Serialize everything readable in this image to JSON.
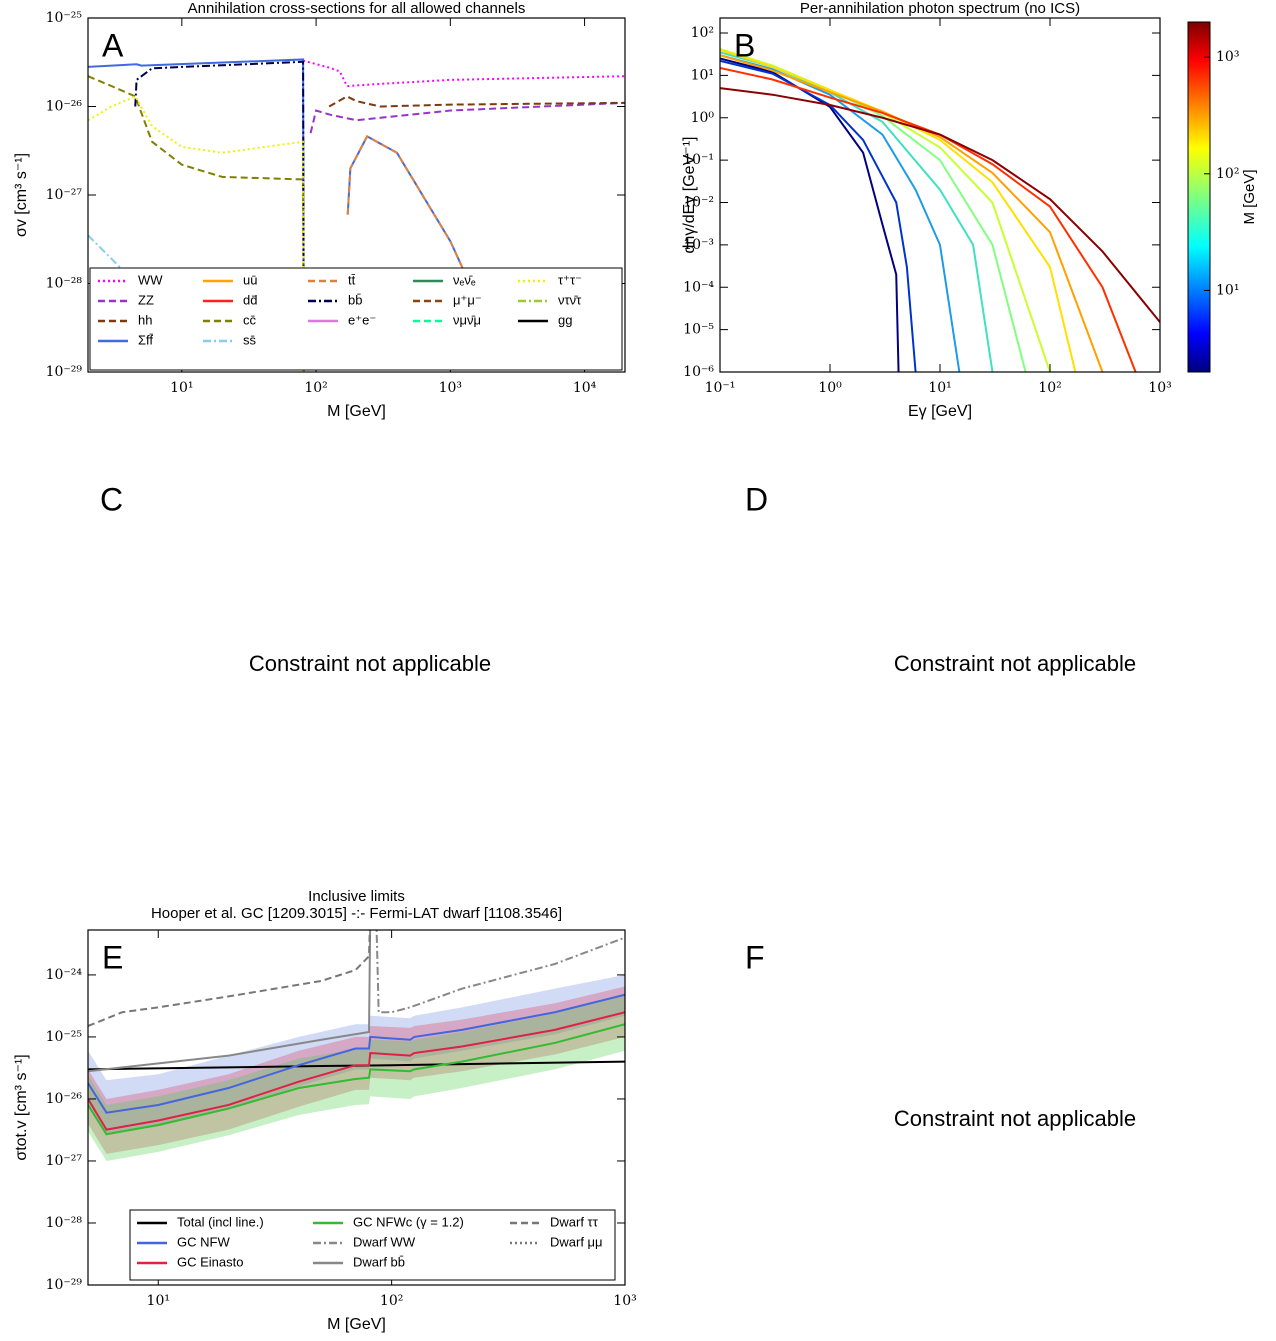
{
  "chart_data": [
    {
      "panel_label": "A",
      "type": "line",
      "title": "Annihilation cross-sections for all allowed channels",
      "xlabel": "M [GeV]",
      "ylabel": "σv [cm³ s⁻¹]",
      "xscale": "log",
      "yscale": "log",
      "xlim": [
        2,
        20000
      ],
      "ylim": [
        1e-29,
        1e-25
      ],
      "xticks": [
        {
          "value": 10,
          "label": "10¹"
        },
        {
          "value": 100,
          "label": "10²"
        },
        {
          "value": 1000,
          "label": "10³"
        },
        {
          "value": 10000,
          "label": "10⁴"
        }
      ],
      "yticks": [
        {
          "value": 1e-29,
          "label": "10⁻²⁹"
        },
        {
          "value": 1e-28,
          "label": "10⁻²⁸"
        },
        {
          "value": 1e-27,
          "label": "10⁻²⁷"
        },
        {
          "value": 1e-26,
          "label": "10⁻²⁶"
        },
        {
          "value": 1e-25,
          "label": "10⁻²⁵"
        }
      ],
      "legend_layout": [
        4,
        4,
        3,
        3,
        3
      ],
      "series": [
        {
          "name": "WW",
          "color": "#ff00ff",
          "style": "dotted",
          "x": [
            80,
            120,
            150,
            170,
            300,
            1000,
            20000
          ],
          "values": [
            3.3e-26,
            2.8e-26,
            2.5e-26,
            1.7e-26,
            1.8e-26,
            2e-26,
            2.2e-26
          ]
        },
        {
          "name": "ZZ",
          "color": "#9933cc",
          "style": "dashed",
          "x": [
            91,
            100,
            130,
            200,
            1000,
            20000
          ],
          "values": [
            5e-27,
            9e-27,
            8e-27,
            7e-27,
            9e-27,
            1.1e-26
          ]
        },
        {
          "name": "hh",
          "color": "#7a3b10",
          "style": "dashed",
          "x": [
            125,
            170,
            200,
            300,
            1000,
            20000
          ],
          "values": [
            1e-26,
            1.3e-26,
            1.15e-26,
            1e-26,
            1.05e-26,
            1.1e-26
          ]
        },
        {
          "name": "Σff̄",
          "color": "#4169e1",
          "style": "solid",
          "x": [
            2,
            4.6,
            5,
            80,
            81,
            120,
            172,
            180,
            240,
            400,
            1000,
            2000
          ],
          "values": [
            2.8e-26,
            3e-26,
            2.9e-26,
            3.4e-26,
            1e-29,
            null,
            6e-28,
            2e-27,
            4.6e-27,
            3e-27,
            3e-28,
            3e-29
          ]
        },
        {
          "name": "uū",
          "color": "#ffa500",
          "style": "solid",
          "x": [],
          "values": []
        },
        {
          "name": "dd̄",
          "color": "#ff2020",
          "style": "solid",
          "x": [],
          "values": []
        },
        {
          "name": "cc̄",
          "color": "#808000",
          "style": "dashed",
          "x": [
            2,
            3,
            4.5,
            6,
            10,
            20,
            80,
            81
          ],
          "values": [
            2.2e-26,
            1.7e-26,
            1.3e-26,
            4e-27,
            2.2e-27,
            1.6e-27,
            1.5e-27,
            1e-29
          ]
        },
        {
          "name": "ss̄",
          "color": "#87ceeb",
          "style": "dashdot",
          "x": [
            2,
            2.5,
            3.5
          ],
          "values": [
            3.5e-28,
            2.5e-28,
            1.5e-28
          ]
        },
        {
          "name": "tt̄",
          "color": "#e08040",
          "style": "dashed",
          "x": [
            172,
            180,
            240,
            400,
            1000,
            2000
          ],
          "values": [
            6e-28,
            2e-27,
            4.6e-27,
            3e-27,
            3e-28,
            3e-29
          ]
        },
        {
          "name": "bb̄",
          "color": "#000050",
          "style": "dashdot",
          "x": [
            4.5,
            4.6,
            6,
            10,
            30,
            80,
            81
          ],
          "values": [
            1e-26,
            2e-26,
            2.7e-26,
            2.8e-26,
            3e-26,
            3.2e-26,
            1e-29
          ]
        },
        {
          "name": "e⁺e⁻",
          "color": "#dd77dd",
          "style": "solid",
          "x": [],
          "values": []
        },
        {
          "name": "νₑν̄ₑ",
          "color": "#2e8b57",
          "style": "solid",
          "x": [],
          "values": []
        },
        {
          "name": "μ⁺μ⁻",
          "color": "#8b4513",
          "style": "dashed",
          "x": [],
          "values": []
        },
        {
          "name": "νμν̄μ",
          "color": "#00ff99",
          "style": "dashed",
          "x": [],
          "values": []
        },
        {
          "name": "τ⁺τ⁻",
          "color": "#f0f000",
          "style": "dotted",
          "x": [
            2,
            3,
            4.5,
            6,
            10,
            20,
            80,
            81
          ],
          "values": [
            7e-27,
            1e-26,
            1.3e-26,
            6e-27,
            3.5e-27,
            3e-27,
            4e-27,
            1e-29
          ]
        },
        {
          "name": "ντν̄τ",
          "color": "#9acd32",
          "style": "dashdot",
          "x": [],
          "values": []
        },
        {
          "name": "gg",
          "color": "#000000",
          "style": "solid",
          "x": [],
          "values": []
        }
      ]
    },
    {
      "panel_label": "B",
      "type": "line",
      "title": "Per-annihilation photon spectrum (no ICS)",
      "xlabel": "Eγ [GeV]",
      "ylabel": "dnγ/dEγ [GeV⁻¹]",
      "xscale": "log",
      "yscale": "log",
      "xlim": [
        0.1,
        1000
      ],
      "ylim": [
        1e-06,
        226
      ],
      "xticks": [
        {
          "value": 0.1,
          "label": "10⁻¹"
        },
        {
          "value": 1,
          "label": "10⁰"
        },
        {
          "value": 10,
          "label": "10¹"
        },
        {
          "value": 100,
          "label": "10²"
        },
        {
          "value": 1000,
          "label": "10³"
        }
      ],
      "yticks": [
        {
          "value": 1e-06,
          "label": "10⁻⁶"
        },
        {
          "value": 1e-05,
          "label": "10⁻⁵"
        },
        {
          "value": 0.0001,
          "label": "10⁻⁴"
        },
        {
          "value": 0.001,
          "label": "10⁻³"
        },
        {
          "value": 0.01,
          "label": "10⁻²"
        },
        {
          "value": 0.1,
          "label": "10⁻¹"
        },
        {
          "value": 1,
          "label": "10⁰"
        },
        {
          "value": 10,
          "label": "10¹"
        },
        {
          "value": 100,
          "label": "10²"
        }
      ],
      "colorbar": {
        "label": "M [GeV]",
        "lim": [
          2,
          2000
        ],
        "ticks": [
          {
            "value": 10,
            "label": "10¹"
          },
          {
            "value": 100,
            "label": "10²"
          },
          {
            "value": 1000,
            "label": "10³"
          }
        ]
      },
      "series": [
        {
          "color": "#000080",
          "style": "solid",
          "x": [
            0.1,
            0.3,
            1,
            2,
            3,
            4,
            4.2
          ],
          "values": [
            25,
            12,
            1.8,
            0.15,
            0.003,
            0.0002,
            1e-06
          ]
        },
        {
          "color": "#0033cc",
          "style": "solid",
          "x": [
            0.1,
            0.3,
            1,
            2,
            4,
            5,
            6
          ],
          "values": [
            22,
            11,
            2,
            0.3,
            0.01,
            0.0003,
            1e-06
          ]
        },
        {
          "color": "#1e9be6",
          "style": "solid",
          "x": [
            0.1,
            0.3,
            1,
            3,
            6,
            10,
            15
          ],
          "values": [
            30,
            14,
            3.5,
            0.4,
            0.02,
            0.001,
            1e-06
          ]
        },
        {
          "color": "#40e0c0",
          "style": "solid",
          "x": [
            0.1,
            0.3,
            1,
            3,
            10,
            20,
            30
          ],
          "values": [
            35,
            16,
            4,
            0.8,
            0.02,
            0.001,
            1e-06
          ]
        },
        {
          "color": "#80ff80",
          "style": "solid",
          "x": [
            0.1,
            0.3,
            1,
            3,
            10,
            30,
            60
          ],
          "values": [
            40,
            17,
            4.5,
            1.1,
            0.1,
            0.001,
            1e-06
          ]
        },
        {
          "color": "#c8ff30",
          "style": "solid",
          "x": [
            0.1,
            0.3,
            1,
            3,
            10,
            30,
            100
          ],
          "values": [
            42,
            17,
            4.5,
            1.3,
            0.2,
            0.01,
            1e-06
          ]
        },
        {
          "color": "#ffe000",
          "style": "solid",
          "x": [
            0.1,
            0.3,
            1,
            3,
            10,
            30,
            100,
            170
          ],
          "values": [
            40,
            16,
            4.5,
            1.4,
            0.3,
            0.03,
            0.0003,
            1e-06
          ]
        },
        {
          "color": "#ffa000",
          "style": "solid",
          "x": [
            0.1,
            0.3,
            1,
            3,
            10,
            30,
            100,
            300
          ],
          "values": [
            30,
            13,
            4,
            1.4,
            0.35,
            0.05,
            0.002,
            1e-06
          ]
        },
        {
          "color": "#ff3000",
          "style": "solid",
          "x": [
            0.1,
            0.3,
            1,
            3,
            10,
            30,
            100,
            300,
            600
          ],
          "values": [
            15,
            8,
            3,
            1.3,
            0.4,
            0.08,
            0.008,
            0.0001,
            1e-06
          ]
        },
        {
          "color": "#8b0000",
          "style": "solid",
          "x": [
            0.1,
            0.3,
            1,
            3,
            10,
            30,
            100,
            300,
            1000
          ],
          "values": [
            5,
            3.5,
            2,
            1,
            0.4,
            0.1,
            0.012,
            0.0007,
            1.5e-05
          ]
        }
      ]
    },
    {
      "panel_label": "E",
      "type": "line",
      "title": [
        "Inclusive limits",
        "Hooper et al. GC [1209.3015] -:- Fermi-LAT dwarf [1108.3546]"
      ],
      "xlabel": "M [GeV]",
      "ylabel": "σtot.v [cm³ s⁻¹]",
      "xscale": "log",
      "yscale": "log",
      "xlim": [
        5,
        1000
      ],
      "ylim": [
        1e-29,
        5.3e-24
      ],
      "xticks": [
        {
          "value": 10,
          "label": "10¹"
        },
        {
          "value": 100,
          "label": "10²"
        },
        {
          "value": 1000,
          "label": "10³"
        }
      ],
      "yticks": [
        {
          "value": 1e-29,
          "label": "10⁻²⁹"
        },
        {
          "value": 1e-28,
          "label": "10⁻²⁸"
        },
        {
          "value": 1e-27,
          "label": "10⁻²⁷"
        },
        {
          "value": 1e-26,
          "label": "10⁻²⁶"
        },
        {
          "value": 1e-25,
          "label": "10⁻²⁵"
        },
        {
          "value": 1e-24,
          "label": "10⁻²⁴"
        }
      ],
      "legend_layout": [
        3,
        3,
        2
      ],
      "bands": [
        {
          "color": "#6688dd",
          "x": [
            5,
            6,
            10,
            20,
            40,
            70,
            80,
            81,
            120,
            125,
            200,
            500,
            1000
          ],
          "upper": [
            6e-26,
            2e-26,
            2.5e-26,
            5e-26,
            1e-25,
            1.6e-25,
            1.6e-25,
            2.2e-25,
            2e-25,
            2.2e-25,
            3e-25,
            6e-25,
            1e-24
          ],
          "lower": [
            8e-27,
            2.7e-27,
            3.6e-27,
            6.8e-27,
            1.6e-26,
            3e-26,
            3e-26,
            4.5e-26,
            4e-26,
            4.5e-26,
            6e-26,
            1.1e-25,
            2.2e-25
          ]
        },
        {
          "color": "#dd3355",
          "x": [
            5,
            6,
            10,
            20,
            40,
            70,
            80,
            81,
            120,
            125,
            200,
            500,
            1000
          ],
          "upper": [
            3e-26,
            1e-26,
            1.4e-26,
            2.5e-26,
            6e-26,
            1e-25,
            1e-25,
            1.5e-25,
            1.4e-25,
            1.5e-25,
            1.9e-25,
            3.5e-25,
            6.5e-25
          ],
          "lower": [
            4e-27,
            1.3e-27,
            1.8e-27,
            3.2e-27,
            7.5e-27,
            1.4e-26,
            1.4e-26,
            2.2e-26,
            2e-26,
            2.2e-26,
            2.8e-26,
            5.2e-26,
            1e-25
          ]
        },
        {
          "color": "#44cc44",
          "x": [
            5,
            6,
            10,
            20,
            40,
            70,
            80,
            81,
            120,
            125,
            200,
            500,
            1000
          ],
          "upper": [
            2.4e-26,
            8e-27,
            1.1e-26,
            2e-26,
            4.5e-26,
            6.3e-26,
            6.6e-26,
            9e-26,
            8.5e-26,
            9e-26,
            1.2e-25,
            2.4e-25,
            4.8e-25
          ],
          "lower": [
            3e-27,
            1e-27,
            1.4e-27,
            2.6e-27,
            5.5e-27,
            8e-27,
            8.2e-27,
            1.1e-26,
            1e-26,
            1.1e-26,
            1.5e-26,
            3e-26,
            6e-26
          ]
        }
      ],
      "series": [
        {
          "name": "Total (incl line.)",
          "color": "#000000",
          "style": "solid",
          "x": [
            5,
            50,
            100,
            1000
          ],
          "values": [
            3e-26,
            3.4e-26,
            3.5e-26,
            4e-26
          ]
        },
        {
          "name": "GC NFW",
          "color": "#4466dd",
          "style": "solid",
          "x": [
            5,
            6,
            10,
            20,
            40,
            70,
            80,
            81,
            120,
            125,
            200,
            500,
            1000
          ],
          "values": [
            1.8e-26,
            6e-27,
            8e-27,
            1.5e-26,
            3.5e-26,
            6.5e-26,
            6.5e-26,
            1e-25,
            9e-26,
            1e-25,
            1.3e-25,
            2.5e-25,
            4.8e-25
          ]
        },
        {
          "name": "GC Einasto",
          "color": "#dd2244",
          "style": "solid",
          "x": [
            5,
            6,
            10,
            20,
            40,
            70,
            80,
            81,
            120,
            125,
            200,
            500,
            1000
          ],
          "values": [
            1e-26,
            3.2e-27,
            4.5e-27,
            8e-27,
            1.9e-26,
            3.5e-26,
            3.5e-26,
            5.5e-26,
            5e-26,
            5.5e-26,
            7e-26,
            1.3e-25,
            2.5e-25
          ]
        },
        {
          "name": "GC NFWc (γ = 1.2)",
          "color": "#33bb33",
          "style": "solid",
          "x": [
            5,
            6,
            10,
            20,
            40,
            70,
            80,
            81,
            120,
            125,
            200,
            500,
            1000
          ],
          "values": [
            8e-27,
            2.7e-27,
            3.8e-27,
            7e-27,
            1.5e-26,
            2.1e-26,
            2.2e-26,
            3e-26,
            2.8e-26,
            3e-26,
            4e-26,
            8e-26,
            1.6e-25
          ]
        },
        {
          "name": "Dwarf WW",
          "color": "#888888",
          "style": "dashdot",
          "x": [
            86,
            88,
            100,
            120,
            200,
            500,
            1000
          ],
          "values": [
            8e-24,
            2.5e-25,
            2.5e-25,
            3e-25,
            6e-25,
            1.5e-24,
            4e-24
          ]
        },
        {
          "name": "Dwarf bb̄",
          "color": "#888888",
          "style": "solid",
          "x": [
            5,
            20,
            50,
            80,
            81
          ],
          "values": [
            2.8e-26,
            5e-26,
            9e-26,
            1.2e-25,
            1e-23
          ]
        },
        {
          "name": "Dwarf ττ",
          "color": "#777777",
          "style": "dashed",
          "x": [
            5,
            7,
            10,
            20,
            50,
            70,
            80,
            81
          ],
          "values": [
            1.5e-25,
            2.5e-25,
            3e-25,
            4.5e-25,
            8e-25,
            1.2e-24,
            2e-24,
            1e-23
          ]
        },
        {
          "name": "Dwarf μμ",
          "color": "#777777",
          "style": "dotted",
          "x": [],
          "values": []
        }
      ]
    }
  ],
  "empty_panels": [
    {
      "label": "C",
      "message": "Constraint not applicable"
    },
    {
      "label": "D",
      "message": "Constraint not applicable"
    },
    {
      "label": "F",
      "message": "Constraint not applicable"
    }
  ]
}
